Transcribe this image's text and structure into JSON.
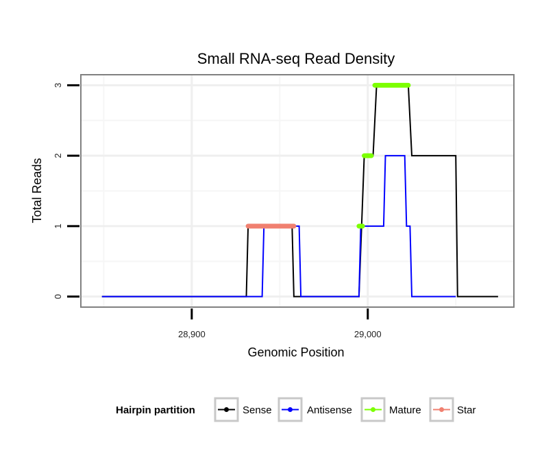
{
  "chart_data": {
    "type": "line",
    "title": "Small RNA-seq Read Density",
    "xlabel": "Genomic Position",
    "ylabel": "Total Reads",
    "xlim": [
      28837,
      29083
    ],
    "ylim": [
      -0.15,
      3.15
    ],
    "x_ticks": [
      28900,
      29000
    ],
    "x_tick_labels": [
      "28,900",
      "29,000"
    ],
    "y_ticks": [
      0,
      1,
      2,
      3
    ],
    "y_tick_labels": [
      "0",
      "1",
      "2",
      "3"
    ],
    "legend_title": "Hairpin partition",
    "legend_position": "bottom",
    "series": [
      {
        "name": "Sense",
        "color": "#000000",
        "x": [
          28849,
          28931,
          28932,
          28957,
          28958,
          28995,
          28998,
          29003,
          29005,
          29023,
          29025,
          29050,
          29051,
          29074
        ],
        "y": [
          0,
          0,
          1,
          1,
          0,
          0,
          2,
          2,
          3,
          3,
          2,
          2,
          0,
          0
        ]
      },
      {
        "name": "Antisense",
        "color": "#0000ff",
        "x": [
          28849,
          28940,
          28941,
          28961,
          28962,
          28995,
          28996,
          29009,
          29010,
          29021,
          29022,
          29024,
          29025,
          29050
        ],
        "y": [
          0,
          0,
          1,
          1,
          0,
          0,
          1,
          1,
          2,
          2,
          1,
          1,
          0,
          0
        ]
      },
      {
        "name": "Mature",
        "color": "#7cff00",
        "segments": [
          {
            "x": [
              28995,
              28997
            ],
            "y": [
              1,
              1
            ]
          },
          {
            "x": [
              28998,
              29002
            ],
            "y": [
              2,
              2
            ]
          },
          {
            "x": [
              29004,
              29023
            ],
            "y": [
              3,
              3
            ]
          }
        ]
      },
      {
        "name": "Star",
        "color": "#f08070",
        "segments": [
          {
            "x": [
              28932,
              28958
            ],
            "y": [
              1,
              1
            ]
          }
        ]
      }
    ]
  }
}
